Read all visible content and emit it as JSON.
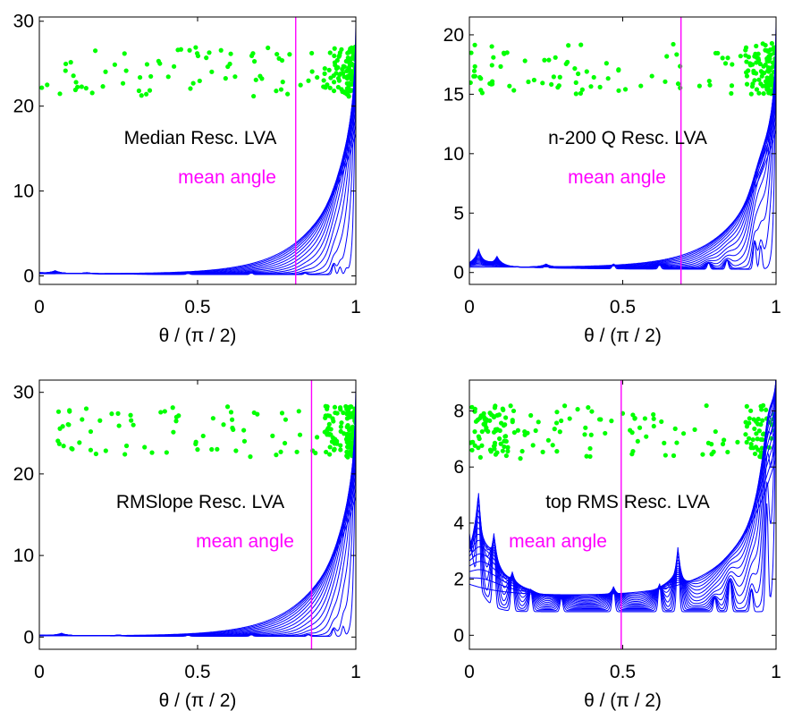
{
  "chart_data": [
    {
      "type": "line",
      "title": "Median Resc. LVA",
      "xlabel": "θ / (π / 2)",
      "ylabel": "",
      "xlim": [
        0,
        1
      ],
      "ylim": [
        -1,
        30.5
      ],
      "xticks": [
        0,
        0.5,
        1
      ],
      "xtick_labels": [
        "0",
        "0.5",
        "1"
      ],
      "yticks": [
        0,
        10,
        20,
        30
      ],
      "ytick_labels": [
        "0",
        "10",
        "20",
        "30"
      ],
      "marker_line": {
        "x": 0.81,
        "label": "mean angle",
        "color": "#ff00ff"
      },
      "series_color": "#0000ff",
      "series": {
        "count": 16,
        "base_start": 0.5,
        "peak_end": 30,
        "bumpiness": 0.3
      },
      "scatter": {
        "color": "#00ff00",
        "ymin": 21,
        "ymax": 27,
        "density": "dense at right edge"
      }
    },
    {
      "type": "line",
      "title": "n-200 Q Resc. LVA",
      "xlabel": "θ / (π / 2)",
      "ylabel": "",
      "xlim": [
        0,
        1
      ],
      "ylim": [
        -1,
        21.5
      ],
      "xticks": [
        0,
        0.5,
        1
      ],
      "xtick_labels": [
        "0",
        "0.5",
        "1"
      ],
      "yticks": [
        0,
        5,
        10,
        15,
        20
      ],
      "ytick_labels": [
        "0",
        "5",
        "10",
        "15",
        "20"
      ],
      "marker_line": {
        "x": 0.69,
        "label": "mean angle",
        "color": "#ff00ff"
      },
      "series_color": "#0000ff",
      "series": {
        "count": 16,
        "base_start": 0.9,
        "peak_end": 21,
        "bumpiness": 0.8
      },
      "scatter": {
        "color": "#00ff00",
        "ymin": 15,
        "ymax": 19.3,
        "density": "dense at right edge"
      }
    },
    {
      "type": "line",
      "title": "RMSlope Resc. LVA",
      "xlabel": "θ / (π / 2)",
      "ylabel": "",
      "xlim": [
        0,
        1
      ],
      "ylim": [
        -1.5,
        31.5
      ],
      "xticks": [
        0,
        0.5,
        1
      ],
      "xtick_labels": [
        "0",
        "0.5",
        "1"
      ],
      "yticks": [
        0,
        10,
        20,
        30
      ],
      "ytick_labels": [
        "0",
        "10",
        "20",
        "30"
      ],
      "marker_line": {
        "x": 0.86,
        "label": "mean angle",
        "color": "#ff00ff"
      },
      "series_color": "#0000ff",
      "series": {
        "count": 16,
        "base_start": 0.3,
        "peak_end": 31,
        "bumpiness": 0.3
      },
      "scatter": {
        "color": "#00ff00",
        "ymin": 22,
        "ymax": 28.3,
        "density": "dense at right edge"
      }
    },
    {
      "type": "line",
      "title": "top RMS Resc. LVA",
      "xlabel": "θ / (π / 2)",
      "ylabel": "",
      "xlim": [
        0,
        1
      ],
      "ylim": [
        -0.5,
        9.1
      ],
      "xticks": [
        0,
        0.5,
        1
      ],
      "xtick_labels": [
        "0",
        "0.5",
        "1"
      ],
      "yticks": [
        0,
        2,
        4,
        6,
        8
      ],
      "ytick_labels": [
        "0",
        "2",
        "4",
        "6",
        "8"
      ],
      "marker_line": {
        "x": 0.495,
        "label": "mean angle",
        "color": "#ff00ff"
      },
      "series_color": "#0000ff",
      "series": {
        "count": 16,
        "base_start": 2.8,
        "peak_end": 9,
        "bumpiness": 1.0
      },
      "scatter": {
        "color": "#00ff00",
        "ymin": 6.3,
        "ymax": 8.2,
        "density": "spread across"
      }
    }
  ]
}
